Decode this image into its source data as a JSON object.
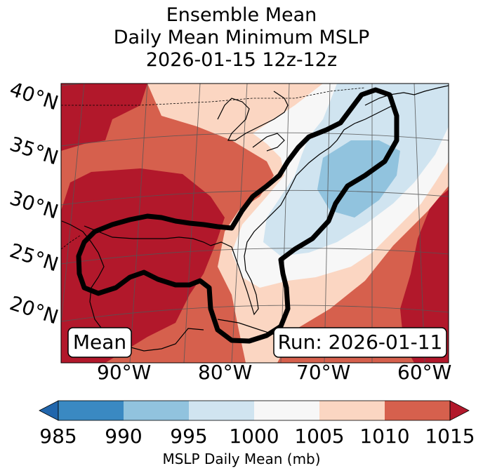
{
  "title": {
    "line1": "Ensemble Mean",
    "line2": "Daily Mean Minimum MSLP",
    "line3": "2026-01-15 12z-12z"
  },
  "map": {
    "lat_labels": [
      "40°N",
      "35°N",
      "30°N",
      "25°N",
      "20°N"
    ],
    "lon_labels": [
      "90°W",
      "80°W",
      "70°W",
      "60°W"
    ],
    "box_left": "Mean",
    "box_right": "Run: 2026-01-11",
    "contour_color": "#000000"
  },
  "colorbar": {
    "label": "MSLP Daily Mean (mb)",
    "ticks": [
      "985",
      "990",
      "995",
      "1000",
      "1005",
      "1010",
      "1015"
    ],
    "colors": [
      "#2166ac",
      "#3a89c2",
      "#91c3de",
      "#d0e4f0",
      "#f7f7f7",
      "#fbd6c2",
      "#d6604d",
      "#b2182b"
    ]
  }
}
